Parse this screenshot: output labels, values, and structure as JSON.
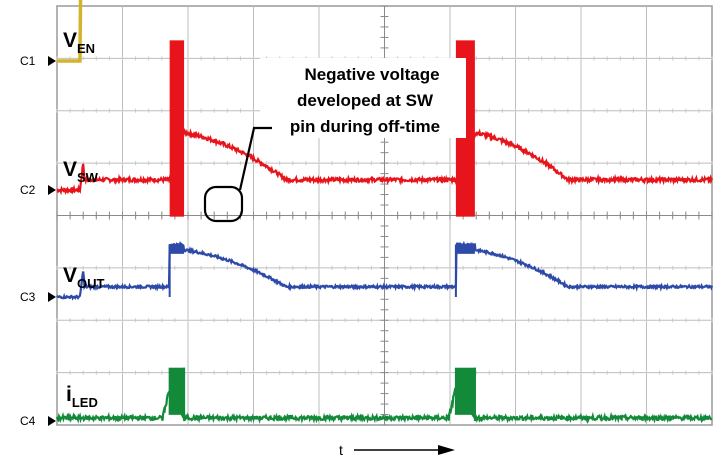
{
  "chart_data": {
    "type": "line",
    "title": "",
    "grid": true,
    "divisions": {
      "horizontal": 10,
      "vertical": 8
    },
    "xlabel": "t",
    "x": [
      0,
      0.35,
      0.36,
      0.38,
      0.4,
      0.42,
      0.45,
      0.8,
      0.9,
      1.0,
      1.05,
      1.1,
      1.2,
      1.4,
      1.6,
      1.8,
      2.0,
      2.2,
      2.4,
      2.6,
      2.8,
      3.0,
      3.2,
      3.4,
      3.6,
      3.8,
      4.0,
      4.2,
      4.4,
      4.6,
      4.8,
      5.0,
      5.2,
      5.4,
      5.6,
      5.7,
      5.8,
      5.9,
      6.0,
      6.05,
      6.1,
      6.2,
      6.4,
      6.6,
      6.8,
      7.0,
      7.2,
      7.4,
      7.6,
      7.8,
      8.0,
      8.2,
      8.4,
      8.6,
      8.8,
      9.0,
      9.2,
      9.4,
      9.6,
      9.8,
      10.0
    ],
    "series": [
      {
        "name": "VEN",
        "channel": "C1",
        "color": "#d4b22a",
        "values": [
          0,
          0,
          3.2,
          3.2,
          3.2,
          3.2,
          3.2,
          3.2,
          3.2,
          3.2,
          3.2,
          3.2,
          3.2,
          3.2,
          3.2,
          3.2,
          3.2,
          3.2,
          3.2,
          3.2,
          3.2,
          3.2,
          3.2,
          3.2,
          3.2,
          3.2,
          3.2,
          3.2,
          3.2,
          3.2,
          3.2,
          3.2,
          3.2,
          3.2,
          3.2,
          3.2,
          3.2,
          3.2,
          3.2,
          3.2,
          3.2,
          3.2,
          3.2,
          3.2,
          3.2,
          3.2,
          3.2,
          3.2,
          3.2,
          3.2,
          3.2,
          3.2,
          3.2,
          3.2,
          3.2,
          3.2,
          3.2,
          3.2,
          3.2,
          3.2,
          3.2
        ]
      },
      {
        "name": "VSW",
        "channel": "C2",
        "color": "#e8141b",
        "values": [
          0,
          0,
          0.1,
          0.6,
          1.3,
          0.5,
          0.5,
          0.5,
          0.5,
          0.5,
          0.5,
          0.5,
          0.5,
          0.5,
          0.5,
          0.5,
          0.5,
          0.5,
          0.5,
          0.5,
          0.5,
          0.5,
          0.5,
          0.5,
          0.5,
          0.5,
          0.5,
          0.5,
          0.5,
          0.5,
          0.5,
          0.5,
          0.5,
          0.5,
          0.5,
          0.5,
          0.5,
          0.5,
          0.5,
          0.5,
          0.5,
          0.5,
          0.5,
          0.5,
          0.5,
          0.5,
          0.5,
          0.5,
          0.5,
          0.5,
          0.5,
          0.5,
          0.5,
          0.5,
          0.5,
          0.5,
          0.5,
          0.5,
          0.5,
          0.5,
          0.5
        ]
      },
      {
        "name": "VOUT",
        "channel": "C3",
        "color": "#2e4aa8",
        "values": [
          0,
          0,
          0.1,
          0.6,
          1.3,
          0.5,
          0.5,
          0.5,
          0.5,
          0.5,
          0.5,
          0.5,
          0.5,
          0.5,
          0.5,
          0.5,
          0.5,
          0.5,
          0.5,
          0.5,
          0.5,
          0.5,
          0.5,
          0.5,
          0.5,
          0.5,
          0.5,
          0.5,
          0.5,
          0.5,
          0.5,
          0.5,
          0.5,
          0.5,
          0.5,
          0.5,
          0.5,
          0.5,
          0.5,
          0.5,
          0.5,
          0.5,
          0.5,
          0.5,
          0.5,
          0.5,
          0.5,
          0.5,
          0.5,
          0.5,
          0.5,
          0.5,
          0.5,
          0.5,
          0.5,
          0.5,
          0.5,
          0.5,
          0.5,
          0.5,
          0.5
        ]
      },
      {
        "name": "iLED",
        "channel": "C4",
        "color": "#138a3a",
        "values": [
          0,
          0,
          0,
          0,
          0,
          0,
          0,
          0,
          0,
          0,
          0,
          0,
          0,
          0,
          0,
          0,
          0,
          0,
          0,
          0,
          0,
          0,
          0,
          0,
          0,
          0,
          0,
          0,
          0,
          0,
          0,
          0,
          0,
          0,
          0,
          0,
          0,
          0,
          0,
          0,
          0,
          0,
          0,
          0,
          0,
          0,
          0,
          0,
          0,
          0,
          0,
          0,
          0,
          0,
          0,
          0,
          0,
          0,
          0,
          0,
          0
        ]
      }
    ],
    "pulses": [
      {
        "on": 1.72,
        "off": 1.94,
        "sw_spike": 7.3,
        "sw_dip": -1.3,
        "sw_plateau": 2.8,
        "sw_decay_to": 0.5,
        "sw_decay_end": 3.5,
        "out_peak": 2.55,
        "out_start": 2.3,
        "out_decay_to": 0.5,
        "out_decay_end": 3.5,
        "led_peak": 2.6,
        "led_plateau": 1.6
      },
      {
        "on": 6.09,
        "off": 6.38,
        "sw_spike": 7.3,
        "sw_dip": -1.3,
        "sw_plateau": 2.8,
        "sw_decay_to": 0.5,
        "sw_decay_end": 7.8,
        "out_peak": 2.55,
        "out_start": 2.3,
        "out_decay_to": 0.5,
        "out_decay_end": 7.8,
        "led_peak": 2.6,
        "led_plateau": 1.6
      }
    ],
    "labels": {
      "ven": {
        "main": "V",
        "sub": "EN"
      },
      "vsw": {
        "main": "V",
        "sub": "SW"
      },
      "vout": {
        "main": "V",
        "sub": "OUT"
      },
      "iled": {
        "main": "i",
        "sub": "LED"
      }
    },
    "channels": [
      "C1",
      "C2",
      "C3",
      "C4"
    ],
    "annotation": [
      "Negative voltage",
      "developed at SW",
      "pin during off-time"
    ]
  }
}
